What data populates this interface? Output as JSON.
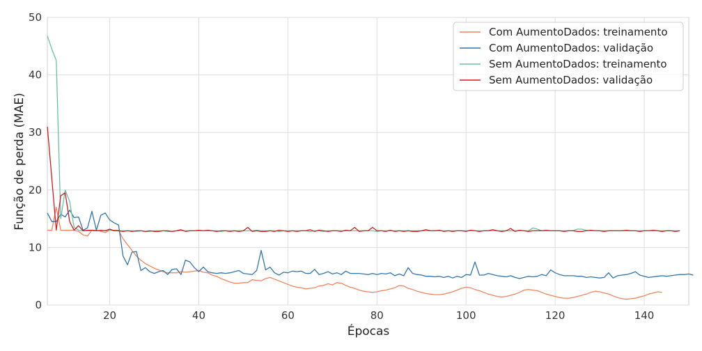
{
  "chart_data": {
    "type": "line",
    "title": "",
    "xlabel": "Épocas",
    "ylabel": "Função de perda (MAE)",
    "xlim": [
      6,
      150
    ],
    "ylim": [
      0,
      50
    ],
    "xticks": [
      20,
      40,
      60,
      80,
      100,
      120,
      140
    ],
    "yticks": [
      0,
      10,
      20,
      30,
      40,
      50
    ],
    "grid": true,
    "legend_position": "top-right",
    "series": [
      {
        "name": "Com AumentoDados: treinamento",
        "color": "#f2845c",
        "x_start": 6,
        "values": [
          13.0,
          13.0,
          17.0,
          13.0,
          13.0,
          13.0,
          13.0,
          12.8,
          12.2,
          12.0,
          13.0,
          13.0,
          12.8,
          12.6,
          13.0,
          13.0,
          13.0,
          11.5,
          10.5,
          9.5,
          8.5,
          7.8,
          7.2,
          6.8,
          6.4,
          6.1,
          5.8,
          5.6,
          5.6,
          5.6,
          5.8,
          5.7,
          5.8,
          5.9,
          6.0,
          5.7,
          5.6,
          5.2,
          5.0,
          4.6,
          4.3,
          4.0,
          3.8,
          3.8,
          3.9,
          3.9,
          4.4,
          4.3,
          4.2,
          4.6,
          4.8,
          4.5,
          4.2,
          3.9,
          3.6,
          3.3,
          3.1,
          3.0,
          2.8,
          2.9,
          3.0,
          3.3,
          3.4,
          3.7,
          3.5,
          3.9,
          3.8,
          3.4,
          3.1,
          2.9,
          2.6,
          2.4,
          2.3,
          2.2,
          2.3,
          2.5,
          2.6,
          2.8,
          3.0,
          3.4,
          3.3,
          2.9,
          2.7,
          2.4,
          2.2,
          2.0,
          1.9,
          1.8,
          1.8,
          1.9,
          2.1,
          2.3,
          2.6,
          2.9,
          3.1,
          3.0,
          2.7,
          2.5,
          2.2,
          1.9,
          1.7,
          1.5,
          1.4,
          1.5,
          1.7,
          1.9,
          2.2,
          2.6,
          2.7,
          2.6,
          2.5,
          2.2,
          1.9,
          1.7,
          1.5,
          1.3,
          1.2,
          1.2,
          1.3,
          1.5,
          1.7,
          1.9,
          2.2,
          2.4,
          2.3,
          2.1,
          1.9,
          1.6,
          1.3,
          1.1,
          1.0,
          1.1,
          1.2,
          1.4,
          1.6,
          1.9,
          2.1,
          2.3,
          2.2
        ]
      },
      {
        "name": "Com AumentoDados: validação",
        "color": "#2f74ad",
        "x_start": 6,
        "values": [
          16.0,
          14.5,
          14.5,
          15.8,
          15.3,
          16.5,
          15.2,
          15.3,
          13.0,
          13.4,
          16.3,
          13.0,
          15.6,
          16.0,
          14.8,
          14.3,
          13.9,
          8.5,
          7.0,
          9.2,
          9.3,
          6.0,
          6.5,
          5.8,
          5.5,
          5.8,
          6.0,
          5.3,
          6.2,
          6.3,
          5.3,
          7.8,
          7.5,
          6.5,
          5.8,
          6.6,
          5.8,
          5.6,
          5.5,
          5.6,
          5.5,
          5.6,
          5.8,
          6.0,
          5.5,
          5.4,
          5.3,
          6.0,
          9.5,
          6.1,
          6.6,
          5.6,
          5.2,
          5.7,
          5.6,
          5.9,
          5.8,
          5.9,
          5.5,
          5.5,
          6.2,
          5.3,
          5.5,
          5.8,
          5.4,
          5.6,
          5.3,
          5.9,
          5.5,
          5.5,
          5.5,
          5.4,
          5.3,
          5.5,
          5.3,
          5.5,
          5.4,
          5.6,
          5.1,
          5.4,
          5.1,
          6.5,
          5.5,
          5.3,
          5.2,
          5.0,
          5.0,
          4.9,
          5.0,
          4.8,
          5.0,
          4.7,
          5.0,
          4.8,
          5.3,
          5.2,
          7.5,
          5.2,
          5.2,
          5.5,
          5.3,
          5.1,
          5.0,
          4.9,
          5.1,
          4.8,
          4.6,
          4.8,
          5.0,
          4.9,
          5.0,
          5.3,
          5.1,
          6.1,
          5.6,
          5.3,
          5.1,
          5.1,
          5.1,
          5.0,
          5.0,
          4.8,
          4.9,
          4.8,
          4.7,
          4.8,
          5.6,
          4.7,
          5.1,
          5.2,
          5.3,
          5.5,
          5.8,
          5.2,
          5.0,
          4.8,
          4.9,
          5.0,
          5.1,
          5.0,
          5.1,
          5.2,
          5.3,
          5.3,
          5.4,
          5.2
        ]
      },
      {
        "name": "Sem AumentoDados: treinamento",
        "color": "#66c2a5",
        "x_start": 6,
        "values": [
          46.8,
          44.5,
          42.5,
          15.0,
          20.0,
          18.0,
          13.5,
          13.0,
          12.9,
          12.9,
          12.9,
          12.9,
          12.9,
          12.9,
          13.0,
          12.9,
          12.9,
          12.9,
          12.9,
          12.9,
          12.8,
          12.9,
          12.8,
          12.8,
          12.9,
          12.9,
          12.9,
          12.8,
          12.8,
          12.9,
          12.9,
          12.9,
          12.9,
          12.9,
          12.9,
          12.9,
          12.9,
          12.9,
          12.9,
          12.8,
          12.9,
          12.9,
          12.9,
          12.9,
          12.9,
          12.9,
          12.9,
          13.0,
          12.9,
          12.9,
          12.9,
          12.9,
          12.8,
          12.9,
          12.9,
          12.9,
          12.9,
          12.9,
          12.9,
          12.8,
          12.9,
          12.9,
          12.8,
          12.9,
          12.9,
          12.9,
          12.9,
          12.9,
          12.9,
          12.9,
          12.9,
          12.9,
          12.9,
          12.9,
          12.8,
          12.9,
          12.9,
          12.9,
          12.9,
          12.9,
          12.9,
          12.9,
          12.9,
          12.9,
          12.9,
          12.9,
          12.9,
          12.9,
          12.9,
          12.9,
          12.9,
          12.9,
          12.9,
          12.9,
          12.9,
          12.9,
          12.9,
          12.9,
          12.9,
          12.9,
          12.9,
          12.9,
          12.9,
          12.9,
          12.9,
          12.9,
          12.9,
          12.9,
          12.9,
          13.4,
          13.2,
          12.9,
          12.9,
          12.9,
          12.9,
          12.9,
          12.9,
          12.9,
          12.9,
          13.2,
          13.2,
          13.0,
          12.9,
          12.9,
          12.9,
          12.9,
          12.9,
          12.9,
          12.9,
          12.9,
          12.9,
          12.9,
          12.9,
          12.9,
          12.9,
          12.9,
          12.9,
          12.9,
          12.9,
          12.9,
          12.9,
          12.9,
          12.9
        ]
      },
      {
        "name": "Sem AumentoDados: validação",
        "color": "#d7191c",
        "x_start": 6,
        "values": [
          31.0,
          22.0,
          13.0,
          19.0,
          19.5,
          14.5,
          13.0,
          13.8,
          12.9,
          13.0,
          13.0,
          12.9,
          13.0,
          12.9,
          13.2,
          12.9,
          12.9,
          12.8,
          12.9,
          12.8,
          12.9,
          12.9,
          12.8,
          12.9,
          12.8,
          12.8,
          12.9,
          12.9,
          12.8,
          12.9,
          13.1,
          12.8,
          12.9,
          12.9,
          13.0,
          12.9,
          13.0,
          12.9,
          12.8,
          12.9,
          12.9,
          12.8,
          12.9,
          12.8,
          12.9,
          13.5,
          12.8,
          12.9,
          12.8,
          12.8,
          12.9,
          12.8,
          13.0,
          12.9,
          12.8,
          12.9,
          12.8,
          12.9,
          12.9,
          13.1,
          12.8,
          13.0,
          12.9,
          12.8,
          12.9,
          12.9,
          12.8,
          13.0,
          12.9,
          13.5,
          12.8,
          12.9,
          12.9,
          13.5,
          12.9,
          12.9,
          12.8,
          13.0,
          12.8,
          12.9,
          12.8,
          12.9,
          12.8,
          12.8,
          12.9,
          13.1,
          12.9,
          12.9,
          13.0,
          12.8,
          12.9,
          12.8,
          12.9,
          12.9,
          12.8,
          13.0,
          12.9,
          12.8,
          12.9,
          12.9,
          13.1,
          12.9,
          12.8,
          12.9,
          13.3,
          12.8,
          13.0,
          12.9,
          12.8,
          12.9,
          12.9,
          12.9,
          13.0,
          12.9,
          12.9,
          12.9,
          12.8,
          12.9,
          12.9,
          12.8,
          12.8,
          12.9,
          13.0,
          12.9,
          12.9,
          12.8,
          12.9,
          12.9,
          12.9,
          12.9,
          13.0,
          12.9,
          12.9,
          12.8,
          12.9,
          12.9,
          13.0,
          12.9,
          12.8,
          12.9,
          12.9,
          12.8,
          12.9
        ]
      }
    ]
  }
}
